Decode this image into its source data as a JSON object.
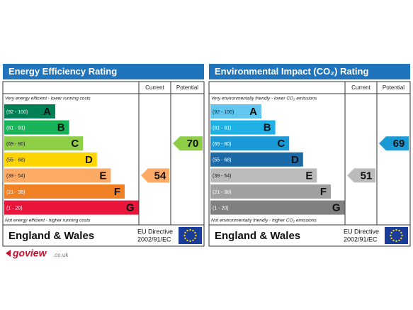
{
  "panels": [
    {
      "title": "Energy Efficiency Rating",
      "header": {
        "current": "Current",
        "potential": "Potential"
      },
      "top_note": "Very energy efficient - lower running costs",
      "bottom_note": "Not energy efficient - higher running costs",
      "bands": [
        {
          "range": "(92 - 100)",
          "letter": "A",
          "color": "#008054"
        },
        {
          "range": "(81 - 91)",
          "letter": "B",
          "color": "#19b459"
        },
        {
          "range": "(69 - 80)",
          "letter": "C",
          "color": "#8dce46"
        },
        {
          "range": "(55 - 68)",
          "letter": "D",
          "color": "#ffd500"
        },
        {
          "range": "(39 - 54)",
          "letter": "E",
          "color": "#fcaa65"
        },
        {
          "range": "(21 - 38)",
          "letter": "F",
          "color": "#ef8023"
        },
        {
          "range": "(1 - 20)",
          "letter": "G",
          "color": "#e9153b"
        }
      ],
      "current": 54,
      "potential": 70,
      "footer": {
        "region": "England & Wales",
        "directive": "EU Directive",
        "directive_code": "2002/91/EC"
      }
    },
    {
      "title": "Environmental Impact (CO₂) Rating",
      "header": {
        "current": "Current",
        "potential": "Potential"
      },
      "top_note": "Very environmentally friendly - lower CO₂ emissions",
      "bottom_note": "Not environmentally friendly - higher CO₂ emissions",
      "bands": [
        {
          "range": "(92 - 100)",
          "letter": "A",
          "color": "#63c6ef"
        },
        {
          "range": "(81 - 91)",
          "letter": "B",
          "color": "#1fb1e6"
        },
        {
          "range": "(69 - 80)",
          "letter": "C",
          "color": "#1a9ad6"
        },
        {
          "range": "(55 - 68)",
          "letter": "D",
          "color": "#1a6aa8"
        },
        {
          "range": "(39 - 54)",
          "letter": "E",
          "color": "#bbbbbb"
        },
        {
          "range": "(21 - 38)",
          "letter": "F",
          "color": "#a0a0a0"
        },
        {
          "range": "(1 - 20)",
          "letter": "G",
          "color": "#808080"
        }
      ],
      "current": 51,
      "potential": 69,
      "footer": {
        "region": "England & Wales",
        "directive": "EU Directive",
        "directive_code": "2002/91/EC"
      }
    }
  ],
  "logo": {
    "brand": "goview",
    "domain": ".co.uk"
  }
}
